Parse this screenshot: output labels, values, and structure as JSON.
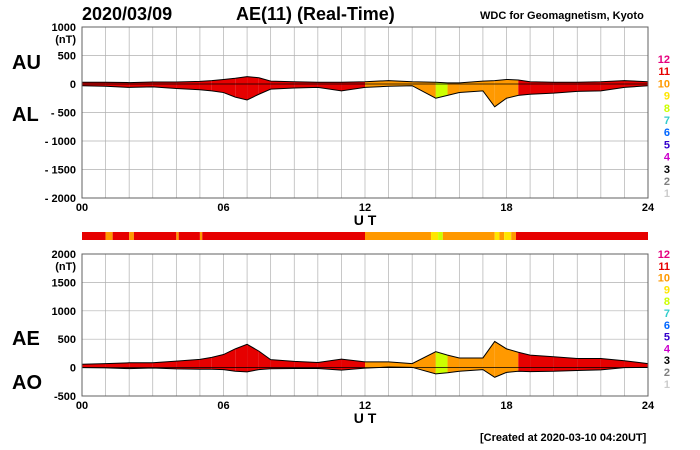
{
  "header": {
    "date": "2020/03/09",
    "title": "AE(11) (Real-Time)",
    "source": "WDC for Geomagnetism, Kyoto"
  },
  "footer": {
    "created": "[Created at 2020-03-10 04:20UT]"
  },
  "colors": {
    "12": "#e6007e",
    "11": "#e60000",
    "10": "#ff9900",
    "9": "#ffe600",
    "8": "#ccff00",
    "7": "#33cccc",
    "6": "#0066ff",
    "5": "#3300cc",
    "4": "#cc00cc",
    "3": "#000000",
    "2": "#7f7f7f",
    "1": "#cccccc"
  },
  "station_count_scale": [
    "12",
    "11",
    "10",
    "9",
    "8",
    "7",
    "6",
    "5",
    "4",
    "3",
    "2",
    "1"
  ],
  "station_count_segments": [
    {
      "start": 0.0,
      "end": 1.0,
      "n": "11"
    },
    {
      "start": 1.0,
      "end": 1.3,
      "n": "10"
    },
    {
      "start": 1.3,
      "end": 2.0,
      "n": "11"
    },
    {
      "start": 2.0,
      "end": 2.2,
      "n": "10"
    },
    {
      "start": 2.2,
      "end": 4.0,
      "n": "11"
    },
    {
      "start": 4.0,
      "end": 4.1,
      "n": "10"
    },
    {
      "start": 4.1,
      "end": 5.0,
      "n": "11"
    },
    {
      "start": 5.0,
      "end": 5.1,
      "n": "10"
    },
    {
      "start": 5.1,
      "end": 12.0,
      "n": "11"
    },
    {
      "start": 12.0,
      "end": 14.8,
      "n": "10"
    },
    {
      "start": 14.8,
      "end": 15.1,
      "n": "9"
    },
    {
      "start": 15.1,
      "end": 15.3,
      "n": "8"
    },
    {
      "start": 15.3,
      "end": 17.5,
      "n": "10"
    },
    {
      "start": 17.5,
      "end": 17.7,
      "n": "9"
    },
    {
      "start": 17.7,
      "end": 17.9,
      "n": "10"
    },
    {
      "start": 17.9,
      "end": 18.2,
      "n": "9"
    },
    {
      "start": 18.2,
      "end": 18.4,
      "n": "10"
    },
    {
      "start": 18.4,
      "end": 24.0,
      "n": "11"
    }
  ],
  "chart_data": [
    {
      "type": "area",
      "panel": "top",
      "left_labels": [
        "AU",
        "AL"
      ],
      "ylabel": "(nT)",
      "xlabel": "U T",
      "xlim": [
        0,
        24
      ],
      "ylim": [
        -2000,
        1000
      ],
      "x_ticks": [
        "00",
        "06",
        "12",
        "18",
        "24"
      ],
      "y_ticks": [
        "1000",
        "500",
        "0",
        "- 500",
        "- 1000",
        "- 1500",
        "- 2000"
      ],
      "series": [
        {
          "name": "AU",
          "x": [
            0,
            1,
            2,
            3,
            4,
            5,
            5.5,
            6,
            6.5,
            7,
            7.5,
            8,
            9,
            10,
            11,
            12,
            13,
            14,
            15,
            15.5,
            16,
            17,
            17.5,
            18,
            18.5,
            19,
            20,
            21,
            22,
            23,
            24
          ],
          "values": [
            30,
            30,
            25,
            35,
            35,
            45,
            60,
            80,
            100,
            130,
            110,
            50,
            40,
            30,
            30,
            40,
            60,
            40,
            30,
            20,
            20,
            50,
            60,
            80,
            70,
            40,
            30,
            30,
            40,
            60,
            40
          ]
        },
        {
          "name": "AL",
          "x": [
            0,
            1,
            2,
            3,
            4,
            5,
            5.5,
            6,
            6.5,
            7,
            7.5,
            8,
            9,
            10,
            11,
            12,
            13,
            14,
            15,
            15.5,
            16,
            17,
            17.5,
            18,
            18.5,
            19,
            20,
            21,
            22,
            23,
            24
          ],
          "values": [
            -30,
            -40,
            -60,
            -50,
            -80,
            -100,
            -120,
            -150,
            -230,
            -280,
            -180,
            -90,
            -70,
            -60,
            -120,
            -60,
            -40,
            -30,
            -250,
            -200,
            -150,
            -120,
            -400,
            -250,
            -200,
            -180,
            -160,
            -130,
            -120,
            -60,
            -30
          ]
        }
      ]
    },
    {
      "type": "area",
      "panel": "bottom",
      "left_labels": [
        "AE",
        "AO"
      ],
      "ylabel": "(nT)",
      "xlabel": "U T",
      "xlim": [
        0,
        24
      ],
      "ylim": [
        -500,
        2000
      ],
      "x_ticks": [
        "00",
        "06",
        "12",
        "18",
        "24"
      ],
      "y_ticks": [
        "2000",
        "1500",
        "1000",
        "500",
        "0",
        "-500"
      ],
      "series": [
        {
          "name": "AE",
          "x": [
            0,
            1,
            2,
            3,
            4,
            5,
            5.5,
            6,
            6.5,
            7,
            7.5,
            8,
            9,
            10,
            11,
            12,
            13,
            14,
            15,
            15.5,
            16,
            17,
            17.5,
            18,
            18.5,
            19,
            20,
            21,
            22,
            23,
            24
          ],
          "values": [
            60,
            70,
            85,
            85,
            115,
            145,
            180,
            230,
            330,
            410,
            290,
            140,
            110,
            90,
            150,
            100,
            100,
            70,
            280,
            220,
            170,
            170,
            460,
            330,
            270,
            220,
            190,
            160,
            160,
            120,
            70
          ]
        },
        {
          "name": "AO",
          "x": [
            0,
            1,
            2,
            3,
            4,
            5,
            5.5,
            6,
            6.5,
            7,
            7.5,
            8,
            9,
            10,
            11,
            12,
            13,
            14,
            15,
            15.5,
            16,
            17,
            17.5,
            18,
            18.5,
            19,
            20,
            21,
            22,
            23,
            24
          ],
          "values": [
            0,
            -5,
            -18,
            -8,
            -23,
            -28,
            -30,
            -35,
            -65,
            -75,
            -35,
            -20,
            -15,
            -15,
            -45,
            -10,
            10,
            5,
            -110,
            -90,
            -65,
            -35,
            -170,
            -85,
            -65,
            -70,
            -65,
            -50,
            -40,
            0,
            5
          ]
        }
      ]
    }
  ]
}
